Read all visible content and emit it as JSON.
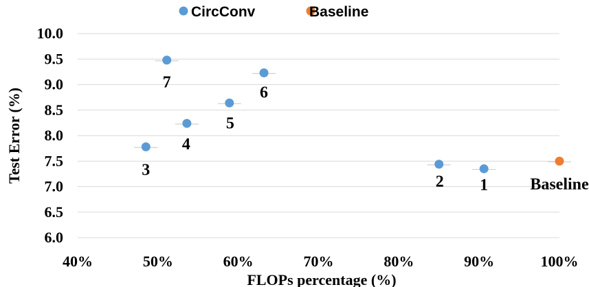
{
  "chart_data": {
    "type": "scatter",
    "title": "",
    "xlabel": "FLOPs percentage (%)",
    "ylabel": "Test Error (%)",
    "xlim": [
      40,
      100
    ],
    "ylim": [
      6.0,
      10.0
    ],
    "x_ticks": [
      "40%",
      "50%",
      "60%",
      "70%",
      "80%",
      "90%",
      "100%"
    ],
    "y_ticks": [
      "6.0",
      "6.5",
      "7.0",
      "7.5",
      "8.0",
      "8.5",
      "9.0",
      "9.5",
      "10.0"
    ],
    "grid": "horizontal",
    "legend_position": "top-center",
    "series": [
      {
        "name": "CircConv",
        "color": "#5B9BD5",
        "points": [
          {
            "x": 90.6,
            "y": 7.35,
            "label": "1"
          },
          {
            "x": 85.0,
            "y": 7.44,
            "label": "2"
          },
          {
            "x": 48.5,
            "y": 7.78,
            "label": "3"
          },
          {
            "x": 53.6,
            "y": 8.24,
            "label": "4"
          },
          {
            "x": 58.9,
            "y": 8.64,
            "label": "5"
          },
          {
            "x": 63.2,
            "y": 9.23,
            "label": "6"
          },
          {
            "x": 51.1,
            "y": 9.48,
            "label": "7"
          }
        ]
      },
      {
        "name": "Baseline",
        "color": "#ED7D31",
        "points": [
          {
            "x": 100.0,
            "y": 7.5,
            "label": "Baseline"
          }
        ]
      }
    ]
  }
}
